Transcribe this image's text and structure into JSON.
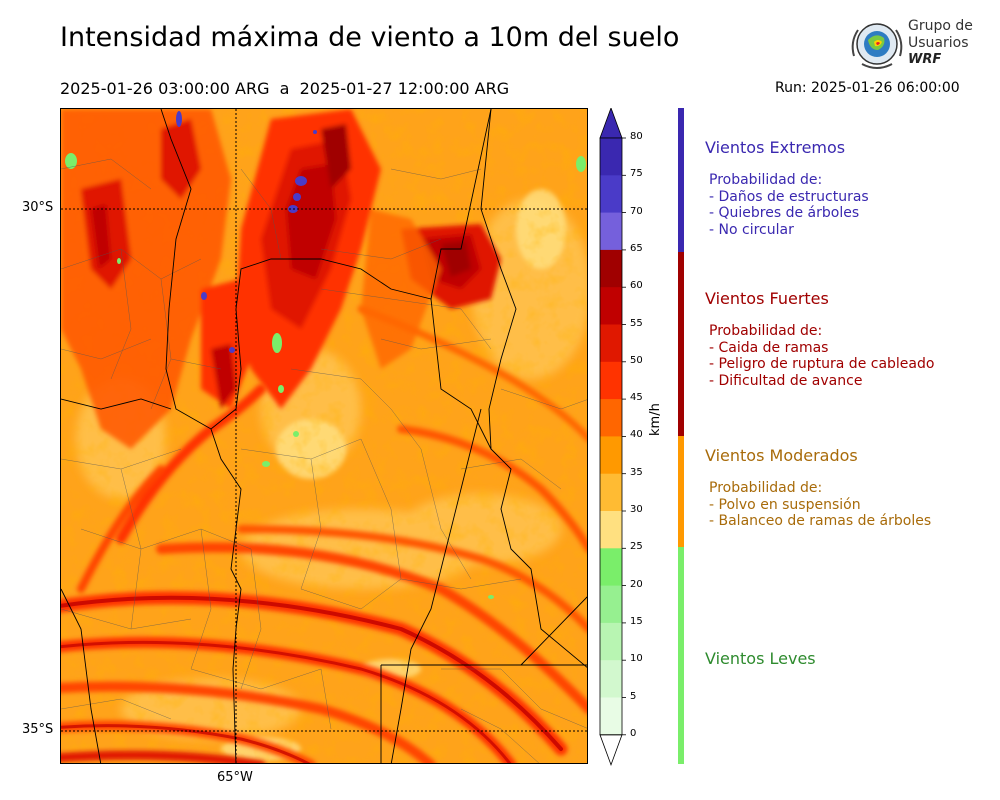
{
  "header": {
    "title": "Intensidad máxima de viento a 10m del suelo",
    "period": "2025-01-26 03:00:00 ARG  a  2025-01-27 12:00:00 ARG",
    "run": "Run: 2025-01-26 06:00:00"
  },
  "logo": {
    "line1": "Grupo de",
    "line2": "Usuarios",
    "line3": "WRF"
  },
  "map": {
    "lat_labels": [
      "30°S",
      "35°S"
    ],
    "lon_labels": [
      "65°W"
    ]
  },
  "colorbar": {
    "unit": "km/h",
    "ticks": [
      "80",
      "75",
      "70",
      "65",
      "60",
      "55",
      "50",
      "45",
      "40",
      "35",
      "30",
      "25",
      "20",
      "15",
      "10",
      "5",
      "0"
    ],
    "colors": [
      "#3a28b0",
      "#4a3bc8",
      "#7560dc",
      "#a00000",
      "#c00000",
      "#e01800",
      "#ff3300",
      "#ff6600",
      "#ff9900",
      "#ffbb33",
      "#ffe080",
      "#7aee6a",
      "#96f090",
      "#b8f5b2",
      "#d2f8ce",
      "#e8fce5"
    ]
  },
  "categories": [
    {
      "title": "Vientos Extremos",
      "color": "#3a28b0",
      "lines": [
        "Probabilidad de:",
        "- Daños de estructuras",
        "- Quiebres de árboles",
        "- No circular"
      ]
    },
    {
      "title": "Vientos Fuertes",
      "color": "#a00000",
      "lines": [
        "Probabilidad de:",
        "- Caida de ramas",
        "- Peligro de ruptura de cableado",
        "- Dificultad de avance"
      ]
    },
    {
      "title": "Vientos Moderados",
      "color": "#a86b0a",
      "bar_color": "#ff9900",
      "lines": [
        "Probabilidad de:",
        "- Polvo en suspensión",
        "- Balanceo de ramas de árboles"
      ]
    },
    {
      "title": "Vientos Leves",
      "color": "#2e8b2e",
      "bar_color": "#7aee6a",
      "lines": []
    }
  ]
}
